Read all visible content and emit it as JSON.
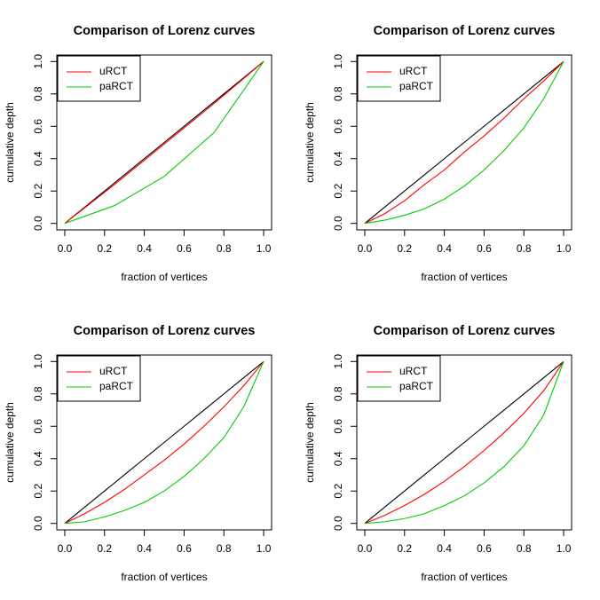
{
  "chart_data": [
    {
      "type": "line",
      "title": "Comparison of Lorenz curves",
      "xlabel": "fraction of vertices",
      "ylabel": "cumulative depth",
      "x": [
        0,
        0.25,
        0.5,
        0.75,
        1
      ],
      "series": [
        {
          "color": "#000000",
          "values": [
            0,
            0.25,
            0.5,
            0.75,
            1
          ]
        },
        {
          "name": "uRCT",
          "color": "#ff0000",
          "values": [
            0,
            0.24,
            0.49,
            0.74,
            1
          ]
        },
        {
          "name": "paRCT",
          "color": "#00cd00",
          "values": [
            0,
            0.11,
            0.29,
            0.56,
            1
          ]
        }
      ],
      "xlim": [
        -0.04,
        1.04
      ],
      "ylim": [
        -0.04,
        1.04
      ],
      "xticks": [
        {
          "value": 0,
          "label": "0.0"
        },
        0.2,
        0.4,
        0.6,
        0.8,
        {
          "value": 1,
          "label": "1.0"
        }
      ],
      "yticks": [
        {
          "value": 0,
          "label": "0.0"
        },
        0.2,
        0.4,
        0.6,
        0.8,
        {
          "value": 1,
          "label": "1.0"
        }
      ],
      "legend": "topleft"
    },
    {
      "type": "line",
      "title": "Comparison of Lorenz curves",
      "xlabel": "fraction of vertices",
      "ylabel": "cumulative depth",
      "x": [
        0,
        0.1,
        0.2,
        0.3,
        0.4,
        0.5,
        0.6,
        0.7,
        0.8,
        0.9,
        1
      ],
      "series": [
        {
          "color": "#000000",
          "values": [
            0,
            0.1,
            0.2,
            0.3,
            0.4,
            0.5,
            0.6,
            0.7,
            0.8,
            0.9,
            1
          ]
        },
        {
          "name": "uRCT",
          "color": "#ff0000",
          "values": [
            0,
            0.06,
            0.14,
            0.24,
            0.33,
            0.44,
            0.54,
            0.65,
            0.77,
            0.88,
            1
          ]
        },
        {
          "name": "paRCT",
          "color": "#00cd00",
          "values": [
            0,
            0.02,
            0.05,
            0.09,
            0.15,
            0.23,
            0.33,
            0.45,
            0.59,
            0.77,
            1
          ]
        }
      ],
      "xlim": [
        -0.04,
        1.04
      ],
      "ylim": [
        -0.04,
        1.04
      ],
      "xticks": [
        {
          "value": 0,
          "label": "0.0"
        },
        0.2,
        0.4,
        0.6,
        0.8,
        {
          "value": 1,
          "label": "1.0"
        }
      ],
      "yticks": [
        {
          "value": 0,
          "label": "0.0"
        },
        0.2,
        0.4,
        0.6,
        0.8,
        {
          "value": 1,
          "label": "1.0"
        }
      ],
      "legend": "topleft"
    },
    {
      "type": "line",
      "title": "Comparison of Lorenz curves",
      "xlabel": "fraction of vertices",
      "ylabel": "cumulative depth",
      "x": [
        0,
        0.1,
        0.2,
        0.3,
        0.4,
        0.5,
        0.6,
        0.7,
        0.8,
        0.9,
        1
      ],
      "series": [
        {
          "color": "#000000",
          "values": [
            0,
            0.1,
            0.2,
            0.3,
            0.4,
            0.5,
            0.6,
            0.7,
            0.8,
            0.9,
            1
          ]
        },
        {
          "name": "uRCT",
          "color": "#ff0000",
          "values": [
            0,
            0.06,
            0.13,
            0.21,
            0.3,
            0.39,
            0.49,
            0.6,
            0.72,
            0.85,
            1
          ]
        },
        {
          "name": "paRCT",
          "color": "#00cd00",
          "values": [
            0,
            0.01,
            0.04,
            0.08,
            0.13,
            0.2,
            0.29,
            0.4,
            0.53,
            0.72,
            1
          ]
        }
      ],
      "xlim": [
        -0.04,
        1.04
      ],
      "ylim": [
        -0.04,
        1.04
      ],
      "xticks": [
        {
          "value": 0,
          "label": "0.0"
        },
        0.2,
        0.4,
        0.6,
        0.8,
        {
          "value": 1,
          "label": "1.0"
        }
      ],
      "yticks": [
        {
          "value": 0,
          "label": "0.0"
        },
        0.2,
        0.4,
        0.6,
        0.8,
        {
          "value": 1,
          "label": "1.0"
        }
      ],
      "legend": "topleft"
    },
    {
      "type": "line",
      "title": "Comparison of Lorenz curves",
      "xlabel": "fraction of vertices",
      "ylabel": "cumulative depth",
      "x": [
        0,
        0.1,
        0.2,
        0.3,
        0.4,
        0.5,
        0.6,
        0.7,
        0.8,
        0.9,
        1
      ],
      "series": [
        {
          "color": "#000000",
          "values": [
            0,
            0.1,
            0.2,
            0.3,
            0.4,
            0.5,
            0.6,
            0.7,
            0.8,
            0.9,
            1
          ]
        },
        {
          "name": "uRCT",
          "color": "#ff0000",
          "values": [
            0,
            0.05,
            0.11,
            0.18,
            0.26,
            0.35,
            0.45,
            0.56,
            0.68,
            0.82,
            1
          ]
        },
        {
          "name": "paRCT",
          "color": "#00cd00",
          "values": [
            0,
            0.01,
            0.03,
            0.06,
            0.11,
            0.17,
            0.25,
            0.35,
            0.48,
            0.67,
            1
          ]
        }
      ],
      "xlim": [
        -0.04,
        1.04
      ],
      "ylim": [
        -0.04,
        1.04
      ],
      "xticks": [
        {
          "value": 0,
          "label": "0.0"
        },
        0.2,
        0.4,
        0.6,
        0.8,
        {
          "value": 1,
          "label": "1.0"
        }
      ],
      "yticks": [
        {
          "value": 0,
          "label": "0.0"
        },
        0.2,
        0.4,
        0.6,
        0.8,
        {
          "value": 1,
          "label": "1.0"
        }
      ],
      "legend": "topleft"
    }
  ]
}
